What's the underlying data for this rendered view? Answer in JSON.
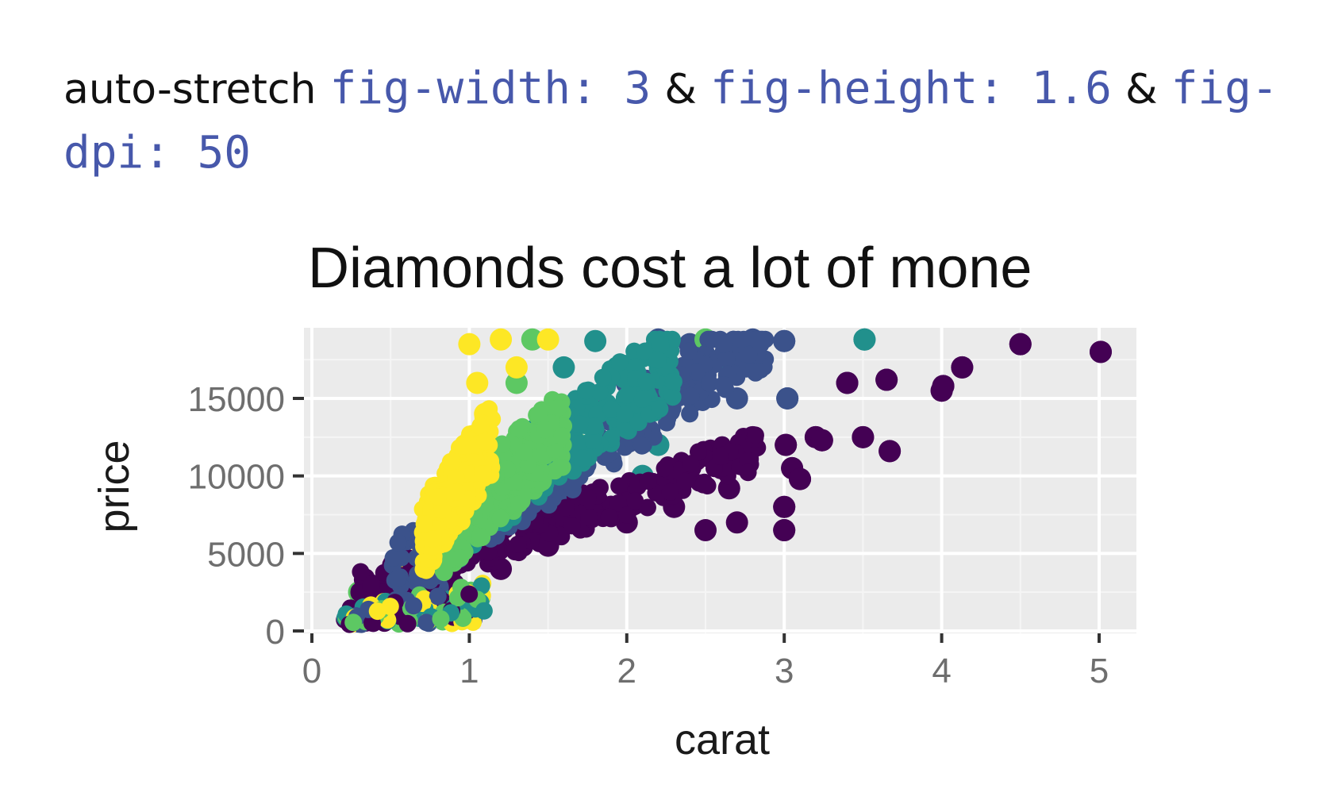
{
  "heading": {
    "lead": "auto-stretch",
    "code1": "fig-width: 3",
    "sep1": "&",
    "code2": "fig-height: 1.6",
    "sep2": "&",
    "code3": "fig-dpi: 50",
    "code_color": "#4758AB"
  },
  "chart_data": {
    "type": "scatter",
    "title": "Diamonds cost a lot of mone",
    "xlabel": "carat",
    "ylabel": "price",
    "xlim": [
      0,
      5.2
    ],
    "ylim": [
      0,
      19000
    ],
    "x_ticks": [
      "0",
      "1",
      "2",
      "3",
      "4",
      "5"
    ],
    "y_ticks": [
      "0",
      "5000",
      "10000",
      "15000"
    ],
    "grid": true,
    "panel_background": "#EBEBEB",
    "palette": [
      "#440154",
      "#3B528B",
      "#21908C",
      "#5DC863",
      "#FDE725"
    ],
    "series": [
      {
        "color": "#440154",
        "x": [
          2.3,
          2.5,
          2.7,
          2.6,
          2.3,
          2.0,
          2.8,
          3.0,
          3.0,
          3.05,
          3.01,
          3.2,
          3.4,
          3.65,
          4.0,
          4.13,
          4.5,
          4.01,
          5.01,
          3.5,
          3.67,
          3.24,
          2.75,
          3.1,
          2.65,
          1.8,
          1.5,
          1.2,
          0.9,
          0.7
        ],
        "y": [
          9000,
          6500,
          7000,
          10500,
          8000,
          7000,
          12500,
          8000,
          6500,
          10500,
          12000,
          12500,
          16000,
          16200,
          15500,
          17000,
          18500,
          15800,
          18000,
          12500,
          11600,
          12300,
          11000,
          9800,
          9200,
          8000,
          5500,
          4000,
          3000,
          2000
        ]
      },
      {
        "color": "#3B528B",
        "x": [
          2.2,
          2.4,
          2.6,
          2.8,
          2.7,
          3.0,
          3.02,
          2.0,
          1.8,
          2.1,
          2.5,
          1.6,
          0.8,
          0.3,
          2.65
        ],
        "y": [
          18800,
          18500,
          17500,
          18800,
          15000,
          18700,
          15000,
          16000,
          12000,
          14000,
          16500,
          9000,
          2800,
          600,
          16500
        ]
      },
      {
        "color": "#21908C",
        "x": [
          1.6,
          1.8,
          2.0,
          2.2,
          2.4,
          2.6,
          3.51,
          1.5,
          1.7,
          2.1
        ],
        "y": [
          17000,
          18700,
          15000,
          12000,
          16000,
          17500,
          18800,
          13000,
          14500,
          10000
        ]
      },
      {
        "color": "#5DC863",
        "x": [
          1.3,
          1.4,
          1.5,
          1.55,
          1.7,
          1.2,
          1.1,
          2.5,
          0.3,
          0.6,
          0.35
        ],
        "y": [
          16000,
          18800,
          13000,
          10000,
          12000,
          8000,
          6000,
          18800,
          2500,
          3500,
          1200
        ]
      },
      {
        "color": "#FDE725",
        "x": [
          1.0,
          1.05,
          1.1,
          1.2,
          1.3,
          1.01,
          1.02,
          1.0,
          1.5,
          0.9,
          0.8,
          0.7,
          0.6,
          0.5,
          0.3,
          0.25
        ],
        "y": [
          18500,
          16000,
          14000,
          18800,
          17000,
          12000,
          10000,
          8000,
          18800,
          9000,
          6500,
          5500,
          4000,
          2800,
          1000,
          600
        ]
      }
    ]
  }
}
